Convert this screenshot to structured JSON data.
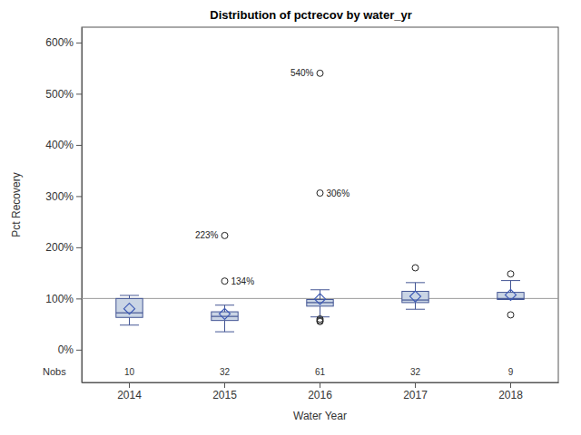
{
  "chart_data": {
    "type": "box",
    "title": "Distribution of pctrecov by water_yr",
    "x_label": "Water Year",
    "y_label": "Pct Recovery",
    "categories": [
      "2014",
      "2015",
      "2016",
      "2017",
      "2018"
    ],
    "boxes": [
      {
        "min": 48,
        "q1": 63,
        "median": 72,
        "q3": 100,
        "max": 106,
        "mean": 80,
        "outliers": [],
        "outlier_labels": []
      },
      {
        "min": 35,
        "q1": 57,
        "median": 65,
        "q3": 74,
        "max": 87,
        "mean": 70,
        "outliers": [
          223,
          134
        ],
        "outlier_labels": [
          "223%",
          "134%"
        ]
      },
      {
        "min": 64,
        "q1": 85,
        "median": 92,
        "q3": 98,
        "max": 117,
        "mean": 99,
        "outliers": [
          540,
          306,
          60,
          57,
          55
        ],
        "outlier_labels": [
          "540%",
          "306%",
          null,
          null,
          null
        ]
      },
      {
        "min": 79,
        "q1": 92,
        "median": 97,
        "q3": 114,
        "max": 131,
        "mean": 104,
        "outliers": [
          160
        ],
        "outlier_labels": [
          null
        ]
      },
      {
        "min": 98,
        "q1": 98,
        "median": 100,
        "q3": 112,
        "max": 135,
        "mean": 107,
        "outliers": [
          148,
          68
        ],
        "outlier_labels": [
          null,
          null
        ]
      }
    ],
    "nobs_label": "Nobs",
    "nobs": [
      10,
      32,
      61,
      32,
      9
    ],
    "reference_line": 100,
    "ylim": [
      -64,
      630
    ],
    "yticks": [
      {
        "value": 0,
        "label": "0%"
      },
      {
        "value": 100,
        "label": "100%"
      },
      {
        "value": 200,
        "label": "200%"
      },
      {
        "value": 300,
        "label": "300%"
      },
      {
        "value": 400,
        "label": "400%"
      },
      {
        "value": 500,
        "label": "500%"
      },
      {
        "value": 600,
        "label": "600%"
      }
    ],
    "color": "#cad5e5",
    "grid": false
  }
}
